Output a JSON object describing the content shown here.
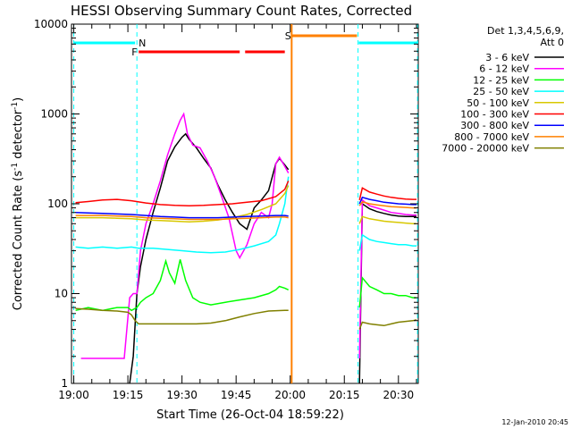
{
  "chart_data": {
    "type": "line",
    "title": "HESSI Observing Summary Count Rates, Corrected",
    "xlabel": "Start Time (26-Oct-04 18:59:22)",
    "ylabel": "Corrected Count Rate (s",
    "ylabel_exp1": "-1",
    "ylabel_mid": " detector",
    "ylabel_exp2": "-1",
    "ylabel_end": ")",
    "yscale": "log",
    "ylim": [
      1,
      10000
    ],
    "xlim_minutes": [
      -0.63,
      95.5
    ],
    "x_ticks": [
      "19:00",
      "19:15",
      "19:30",
      "19:45",
      "20:00",
      "20:15",
      "20:30"
    ],
    "x_tick_minutes": [
      0,
      15,
      30,
      45,
      60,
      75,
      90
    ],
    "y_ticks": [
      "1",
      "10",
      "100",
      "1000",
      "10000"
    ],
    "y_tick_values": [
      1,
      10,
      100,
      1000,
      10000
    ],
    "timestamp": "12-Jan-2010 20:45",
    "legend": {
      "title_line1": "Det 1,3,4,5,6,9,",
      "title_line2": "Att 0",
      "entries": [
        {
          "label": "3 - 6 keV",
          "color": "#000000"
        },
        {
          "label": "6 - 12 keV",
          "color": "#ff00ff"
        },
        {
          "label": "12 - 25 keV",
          "color": "#00ff00"
        },
        {
          "label": "25 - 50 keV",
          "color": "#00ffff"
        },
        {
          "label": "50 - 100 keV",
          "color": "#d8c800"
        },
        {
          "label": "100 - 300 keV",
          "color": "#ff0000"
        },
        {
          "label": "300 - 800 keV",
          "color": "#0000ff"
        },
        {
          "label": "800 - 7000 keV",
          "color": "#ff8000"
        },
        {
          "label": "7000 - 20000 keV",
          "color": "#808000"
        }
      ]
    },
    "flags": [
      {
        "label": "N",
        "color": "#00ffff",
        "x_start": 0,
        "x_end": 17,
        "x_start2": 79,
        "x_end2": 95.5
      },
      {
        "label": "F",
        "color": "#ff0000",
        "x_start": 18,
        "x_end": 46,
        "x_start2": 47.5,
        "x_end2": 58.5
      },
      {
        "label": "S",
        "color": "#ff8000",
        "x_start": 60.5,
        "x_end": 78.5
      }
    ],
    "night_boundaries_minutes": [
      0,
      17.5,
      78.8,
      95.3
    ],
    "saa_boundary_minutes": 60.4,
    "series": [
      {
        "name": "3 - 6 keV",
        "color": "#000000",
        "points": [
          [
            15.5,
            1
          ],
          [
            16.5,
            2
          ],
          [
            17.5,
            10
          ],
          [
            18.5,
            20
          ],
          [
            20,
            40
          ],
          [
            22,
            80
          ],
          [
            24,
            150
          ],
          [
            26,
            300
          ],
          [
            28,
            430
          ],
          [
            30,
            550
          ],
          [
            31,
            600
          ],
          [
            32,
            520
          ],
          [
            34,
            420
          ],
          [
            36,
            320
          ],
          [
            38,
            250
          ],
          [
            40,
            160
          ],
          [
            42,
            110
          ],
          [
            44,
            80
          ],
          [
            46,
            60
          ],
          [
            48,
            52
          ],
          [
            50,
            90
          ],
          [
            52,
            110
          ],
          [
            54,
            140
          ],
          [
            56,
            280
          ],
          [
            57,
            320
          ],
          [
            58.5,
            270
          ],
          [
            59.5,
            240
          ]
        ],
        "points2": [
          [
            79.2,
            1
          ],
          [
            80,
            100
          ],
          [
            82,
            88
          ],
          [
            84,
            82
          ],
          [
            86,
            78
          ],
          [
            88,
            75
          ],
          [
            90,
            73
          ],
          [
            92,
            72
          ],
          [
            94,
            72
          ],
          [
            95,
            72
          ]
        ]
      },
      {
        "name": "6 - 12 keV",
        "color": "#ff00ff",
        "points": [
          [
            2,
            1.9
          ],
          [
            4,
            1.9
          ],
          [
            14,
            1.9
          ],
          [
            15.5,
            9
          ],
          [
            16.5,
            10
          ],
          [
            17.5,
            10
          ],
          [
            18.5,
            30
          ],
          [
            20,
            60
          ],
          [
            22,
            100
          ],
          [
            24,
            180
          ],
          [
            26,
            350
          ],
          [
            28,
            600
          ],
          [
            29.5,
            850
          ],
          [
            30.5,
            1000
          ],
          [
            31.5,
            600
          ],
          [
            33,
            450
          ],
          [
            35,
            420
          ],
          [
            37,
            300
          ],
          [
            39,
            200
          ],
          [
            41,
            120
          ],
          [
            43,
            70
          ],
          [
            45,
            30
          ],
          [
            46,
            25
          ],
          [
            48,
            35
          ],
          [
            50,
            60
          ],
          [
            52,
            80
          ],
          [
            54,
            70
          ],
          [
            55,
            100
          ],
          [
            56,
            280
          ],
          [
            57,
            330
          ],
          [
            58.5,
            260
          ],
          [
            59.5,
            220
          ]
        ],
        "points2": [
          [
            79.2,
            1.9
          ],
          [
            80,
            110
          ],
          [
            82,
            95
          ],
          [
            84,
            90
          ],
          [
            86,
            85
          ],
          [
            88,
            80
          ],
          [
            90,
            78
          ],
          [
            92,
            76
          ],
          [
            94,
            75
          ],
          [
            95,
            75
          ]
        ]
      },
      {
        "name": "12 - 25 keV",
        "color": "#00ff00",
        "points": [
          [
            0.5,
            6.5
          ],
          [
            4,
            7
          ],
          [
            8,
            6.5
          ],
          [
            12,
            7
          ],
          [
            15,
            7
          ],
          [
            16,
            6.5
          ],
          [
            17.5,
            7
          ],
          [
            18.5,
            8
          ],
          [
            20,
            9
          ],
          [
            22,
            10
          ],
          [
            24,
            14
          ],
          [
            25.5,
            23
          ],
          [
            26.5,
            17
          ],
          [
            28,
            13
          ],
          [
            29.5,
            24
          ],
          [
            31,
            14
          ],
          [
            33,
            9
          ],
          [
            35,
            8
          ],
          [
            38,
            7.5
          ],
          [
            42,
            8
          ],
          [
            46,
            8.5
          ],
          [
            50,
            9
          ],
          [
            54,
            10
          ],
          [
            56,
            11
          ],
          [
            57,
            12
          ],
          [
            58.5,
            11.5
          ],
          [
            59.5,
            11
          ]
        ],
        "points2": [
          [
            79.2,
            7
          ],
          [
            80,
            15
          ],
          [
            82,
            12
          ],
          [
            84,
            11
          ],
          [
            86,
            10
          ],
          [
            88,
            10
          ],
          [
            90,
            9.5
          ],
          [
            92,
            9.5
          ],
          [
            94,
            9
          ],
          [
            95,
            9
          ]
        ]
      },
      {
        "name": "25 - 50 keV",
        "color": "#00ffff",
        "points": [
          [
            0.5,
            33
          ],
          [
            4,
            32
          ],
          [
            8,
            33
          ],
          [
            12,
            32
          ],
          [
            16,
            33
          ],
          [
            18,
            32
          ],
          [
            22,
            32
          ],
          [
            26,
            31
          ],
          [
            30,
            30
          ],
          [
            34,
            29
          ],
          [
            38,
            28.5
          ],
          [
            42,
            29
          ],
          [
            46,
            31
          ],
          [
            50,
            34
          ],
          [
            54,
            38
          ],
          [
            56,
            45
          ],
          [
            57,
            60
          ],
          [
            58.5,
            100
          ],
          [
            59.5,
            200
          ]
        ],
        "points2": [
          [
            79.2,
            30
          ],
          [
            80,
            45
          ],
          [
            82,
            40
          ],
          [
            84,
            38
          ],
          [
            86,
            37
          ],
          [
            88,
            36
          ],
          [
            90,
            35
          ],
          [
            92,
            35
          ],
          [
            94,
            34
          ],
          [
            95,
            34
          ]
        ]
      },
      {
        "name": "50 - 100 keV",
        "color": "#d8c800",
        "points": [
          [
            0.5,
            70
          ],
          [
            4,
            70
          ],
          [
            8,
            70
          ],
          [
            12,
            69
          ],
          [
            16,
            68
          ],
          [
            20,
            66
          ],
          [
            24,
            65
          ],
          [
            28,
            64
          ],
          [
            32,
            63
          ],
          [
            36,
            64
          ],
          [
            40,
            66
          ],
          [
            44,
            70
          ],
          [
            48,
            76
          ],
          [
            52,
            86
          ],
          [
            56,
            100
          ],
          [
            58.5,
            130
          ],
          [
            59.5,
            160
          ]
        ],
        "points2": [
          [
            79.2,
            60
          ],
          [
            80,
            72
          ],
          [
            82,
            68
          ],
          [
            84,
            66
          ],
          [
            86,
            64
          ],
          [
            88,
            63
          ],
          [
            90,
            62
          ],
          [
            92,
            61
          ],
          [
            94,
            60
          ],
          [
            95,
            60
          ]
        ]
      },
      {
        "name": "100 - 300 keV",
        "color": "#ff0000",
        "points": [
          [
            0.5,
            103
          ],
          [
            4,
            106
          ],
          [
            8,
            110
          ],
          [
            12,
            112
          ],
          [
            16,
            108
          ],
          [
            20,
            102
          ],
          [
            24,
            98
          ],
          [
            28,
            96
          ],
          [
            32,
            95
          ],
          [
            36,
            96
          ],
          [
            40,
            98
          ],
          [
            44,
            100
          ],
          [
            48,
            104
          ],
          [
            52,
            108
          ],
          [
            56,
            120
          ],
          [
            58.5,
            145
          ],
          [
            59.5,
            180
          ]
        ],
        "points2": [
          [
            79.2,
            110
          ],
          [
            80,
            150
          ],
          [
            82,
            135
          ],
          [
            84,
            128
          ],
          [
            86,
            122
          ],
          [
            88,
            118
          ],
          [
            90,
            115
          ],
          [
            92,
            113
          ],
          [
            94,
            112
          ],
          [
            95,
            112
          ]
        ]
      },
      {
        "name": "300 - 800 keV",
        "color": "#0000ff",
        "points": [
          [
            0.5,
            80
          ],
          [
            4,
            79
          ],
          [
            8,
            78
          ],
          [
            12,
            77
          ],
          [
            16,
            76
          ],
          [
            20,
            74
          ],
          [
            24,
            72
          ],
          [
            28,
            71
          ],
          [
            32,
            70
          ],
          [
            36,
            70
          ],
          [
            40,
            70
          ],
          [
            44,
            71
          ],
          [
            48,
            72
          ],
          [
            52,
            73
          ],
          [
            56,
            74
          ],
          [
            58.5,
            74
          ],
          [
            59.5,
            73
          ]
        ],
        "points2": [
          [
            79.2,
            100
          ],
          [
            80,
            118
          ],
          [
            82,
            112
          ],
          [
            84,
            108
          ],
          [
            86,
            104
          ],
          [
            88,
            102
          ],
          [
            90,
            100
          ],
          [
            92,
            99
          ],
          [
            94,
            98
          ],
          [
            95,
            98
          ]
        ]
      },
      {
        "name": "800 - 7000 keV",
        "color": "#ff8000",
        "points": [
          [
            0.5,
            74
          ],
          [
            4,
            74
          ],
          [
            8,
            74
          ],
          [
            12,
            73
          ],
          [
            16,
            72
          ],
          [
            20,
            70
          ],
          [
            24,
            69
          ],
          [
            28,
            68
          ],
          [
            32,
            67
          ],
          [
            36,
            67
          ],
          [
            40,
            67
          ],
          [
            44,
            68
          ],
          [
            48,
            69
          ],
          [
            52,
            70
          ],
          [
            56,
            71
          ],
          [
            58.5,
            71
          ],
          [
            59.5,
            70
          ]
        ],
        "points2": [
          [
            79.2,
            95
          ],
          [
            80,
            105
          ],
          [
            82,
            100
          ],
          [
            84,
            97
          ],
          [
            86,
            95
          ],
          [
            88,
            93
          ],
          [
            90,
            92
          ],
          [
            92,
            91
          ],
          [
            94,
            90
          ],
          [
            95,
            90
          ]
        ]
      },
      {
        "name": "7000 - 20000 keV",
        "color": "#808000",
        "points": [
          [
            0.5,
            6.8
          ],
          [
            4,
            6.7
          ],
          [
            8,
            6.5
          ],
          [
            12,
            6.4
          ],
          [
            15,
            6.2
          ],
          [
            16,
            5.8
          ],
          [
            17,
            5
          ],
          [
            18,
            4.6
          ],
          [
            22,
            4.6
          ],
          [
            26,
            4.6
          ],
          [
            30,
            4.6
          ],
          [
            34,
            4.6
          ],
          [
            38,
            4.7
          ],
          [
            42,
            5
          ],
          [
            46,
            5.5
          ],
          [
            50,
            6
          ],
          [
            54,
            6.4
          ],
          [
            58.5,
            6.5
          ],
          [
            59.5,
            6.5
          ]
        ],
        "points2": [
          [
            79.2,
            4
          ],
          [
            80,
            4.8
          ],
          [
            82,
            4.6
          ],
          [
            84,
            4.5
          ],
          [
            86,
            4.4
          ],
          [
            88,
            4.6
          ],
          [
            90,
            4.8
          ],
          [
            92,
            4.9
          ],
          [
            94,
            5
          ],
          [
            95,
            5.1
          ]
        ]
      }
    ]
  }
}
